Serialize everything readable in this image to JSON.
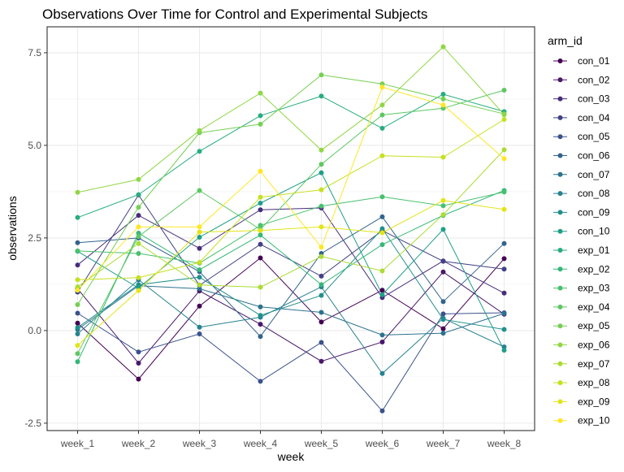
{
  "chart_data": {
    "type": "line",
    "title": "Observations Over Time for Control and Experimental Subjects",
    "xlabel": "week",
    "ylabel": "observations",
    "categories": [
      "week_1",
      "week_2",
      "week_3",
      "week_4",
      "week_5",
      "week_6",
      "week_7",
      "week_8"
    ],
    "ylim": [
      -2.7,
      8.2
    ],
    "yticks": [
      -2.5,
      0.0,
      2.5,
      5.0,
      7.5
    ],
    "ytick_labels": [
      "-2.5",
      "0.0",
      "2.5",
      "5.0",
      "7.5"
    ],
    "grid": true,
    "legend_position": "right",
    "legend_title": "arm_id",
    "series": [
      {
        "name": "con_01",
        "color": "#440154",
        "values": [
          0.2,
          -1.31,
          0.66,
          1.96,
          0.23,
          1.09,
          0.05,
          1.94
        ]
      },
      {
        "name": "con_02",
        "color": "#48186A",
        "values": [
          1.13,
          -0.88,
          1.07,
          0.17,
          -0.83,
          -0.31,
          1.58,
          0.44
        ]
      },
      {
        "name": "con_03",
        "color": "#472D7B",
        "values": [
          1.77,
          3.11,
          2.22,
          3.26,
          3.31,
          0.89,
          1.88,
          1.01
        ]
      },
      {
        "name": "con_04",
        "color": "#424086",
        "values": [
          1.04,
          3.66,
          1.22,
          2.33,
          1.47,
          2.7,
          1.87,
          1.66
        ]
      },
      {
        "name": "con_05",
        "color": "#3B528B",
        "values": [
          0.47,
          -0.58,
          -0.09,
          -1.37,
          -0.32,
          -2.17,
          0.45,
          0.48
        ]
      },
      {
        "name": "con_06",
        "color": "#33638D",
        "values": [
          2.37,
          2.5,
          1.59,
          -0.16,
          2.08,
          3.07,
          0.78,
          2.35
        ]
      },
      {
        "name": "con_07",
        "color": "#2C728E",
        "values": [
          0.03,
          1.21,
          1.13,
          0.64,
          0.49,
          -0.12,
          -0.07,
          0.46
        ]
      },
      {
        "name": "con_08",
        "color": "#26828E",
        "values": [
          -0.09,
          1.37,
          0.09,
          0.36,
          1.18,
          -1.16,
          0.33,
          -0.44
        ]
      },
      {
        "name": "con_09",
        "color": "#21908C",
        "values": [
          0.08,
          1.24,
          1.44,
          0.41,
          0.95,
          2.75,
          0.3,
          0.03
        ]
      },
      {
        "name": "con_10",
        "color": "#1F9F88",
        "values": [
          2.14,
          1.15,
          2.52,
          3.44,
          4.26,
          0.97,
          2.73,
          -0.53
        ]
      },
      {
        "name": "exp_01",
        "color": "#27AD81",
        "values": [
          3.05,
          3.67,
          4.84,
          5.8,
          6.33,
          5.46,
          6.38,
          5.91
        ]
      },
      {
        "name": "exp_02",
        "color": "#35B779",
        "values": [
          -0.84,
          2.63,
          1.64,
          2.58,
          1.24,
          2.32,
          3.11,
          3.78
        ]
      },
      {
        "name": "exp_03",
        "color": "#47C16E",
        "values": [
          2.15,
          2.08,
          1.82,
          2.84,
          3.36,
          3.61,
          3.37,
          3.74
        ]
      },
      {
        "name": "exp_04",
        "color": "#5DC863",
        "values": [
          -0.62,
          2.54,
          3.78,
          2.73,
          4.49,
          5.82,
          6.0,
          6.49
        ]
      },
      {
        "name": "exp_05",
        "color": "#75D054",
        "values": [
          0.7,
          3.33,
          5.34,
          5.57,
          6.9,
          6.66,
          6.25,
          5.85
        ]
      },
      {
        "name": "exp_06",
        "color": "#8FD744",
        "values": [
          3.73,
          4.08,
          5.4,
          6.41,
          4.87,
          6.09,
          7.66,
          5.83
        ]
      },
      {
        "name": "exp_07",
        "color": "#AADC32",
        "values": [
          1.18,
          2.35,
          1.23,
          1.17,
          2.0,
          1.61,
          3.13,
          4.88
        ]
      },
      {
        "name": "exp_08",
        "color": "#C7E020",
        "values": [
          1.37,
          1.43,
          1.84,
          3.6,
          3.8,
          4.72,
          4.68,
          5.7
        ]
      },
      {
        "name": "exp_09",
        "color": "#E3E418",
        "values": [
          -0.4,
          1.08,
          2.66,
          2.7,
          2.8,
          2.64,
          3.51,
          3.27
        ]
      },
      {
        "name": "exp_10",
        "color": "#FDE725",
        "values": [
          1.09,
          2.8,
          2.8,
          4.3,
          2.25,
          6.57,
          6.09,
          4.64
        ]
      }
    ]
  }
}
